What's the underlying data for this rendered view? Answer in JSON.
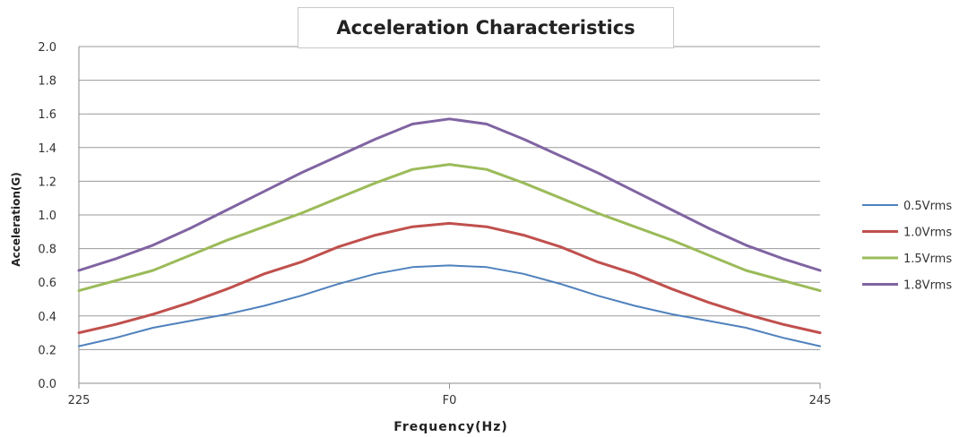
{
  "chart_data": {
    "type": "line",
    "title": "Acceleration Characteristics",
    "xlabel": "Frequency(Hz)",
    "ylabel": "Acceleration(G)",
    "x": [
      0,
      1,
      2,
      3,
      4,
      5,
      6,
      7,
      8,
      9,
      10,
      11,
      12,
      13,
      14,
      15,
      16,
      17,
      18,
      19,
      20
    ],
    "x_tick_labels": [
      {
        "x": 0,
        "label": "225"
      },
      {
        "x": 10,
        "label": "F0"
      },
      {
        "x": 20,
        "label": "245"
      }
    ],
    "xlim": [
      0,
      20
    ],
    "ylim": [
      0,
      2.0
    ],
    "y_ticks": [
      "0.0",
      "0.2",
      "0.4",
      "0.6",
      "0.8",
      "1.0",
      "1.2",
      "1.4",
      "1.6",
      "1.8",
      "2.0"
    ],
    "grid": "horizontal",
    "legend_position": "right",
    "series": [
      {
        "name": "0.5Vrms",
        "color": "#4f81bd",
        "values": [
          0.22,
          0.27,
          0.33,
          0.37,
          0.41,
          0.46,
          0.52,
          0.59,
          0.65,
          0.69,
          0.7,
          0.69,
          0.65,
          0.59,
          0.52,
          0.46,
          0.41,
          0.37,
          0.33,
          0.27,
          0.22
        ]
      },
      {
        "name": "1.0Vrms",
        "color": "#c0504d",
        "values": [
          0.3,
          0.35,
          0.41,
          0.48,
          0.56,
          0.65,
          0.72,
          0.81,
          0.88,
          0.93,
          0.95,
          0.93,
          0.88,
          0.81,
          0.72,
          0.65,
          0.56,
          0.48,
          0.41,
          0.35,
          0.3
        ]
      },
      {
        "name": "1.5Vrms",
        "color": "#9bbb59",
        "values": [
          0.55,
          0.61,
          0.67,
          0.76,
          0.85,
          0.93,
          1.01,
          1.1,
          1.19,
          1.27,
          1.3,
          1.27,
          1.19,
          1.1,
          1.01,
          0.93,
          0.85,
          0.76,
          0.67,
          0.61,
          0.55
        ]
      },
      {
        "name": "1.8Vrms",
        "color": "#8064a2",
        "values": [
          0.67,
          0.74,
          0.82,
          0.92,
          1.03,
          1.14,
          1.25,
          1.35,
          1.45,
          1.54,
          1.57,
          1.54,
          1.45,
          1.35,
          1.25,
          1.14,
          1.03,
          0.92,
          0.82,
          0.74,
          0.67
        ]
      }
    ]
  }
}
